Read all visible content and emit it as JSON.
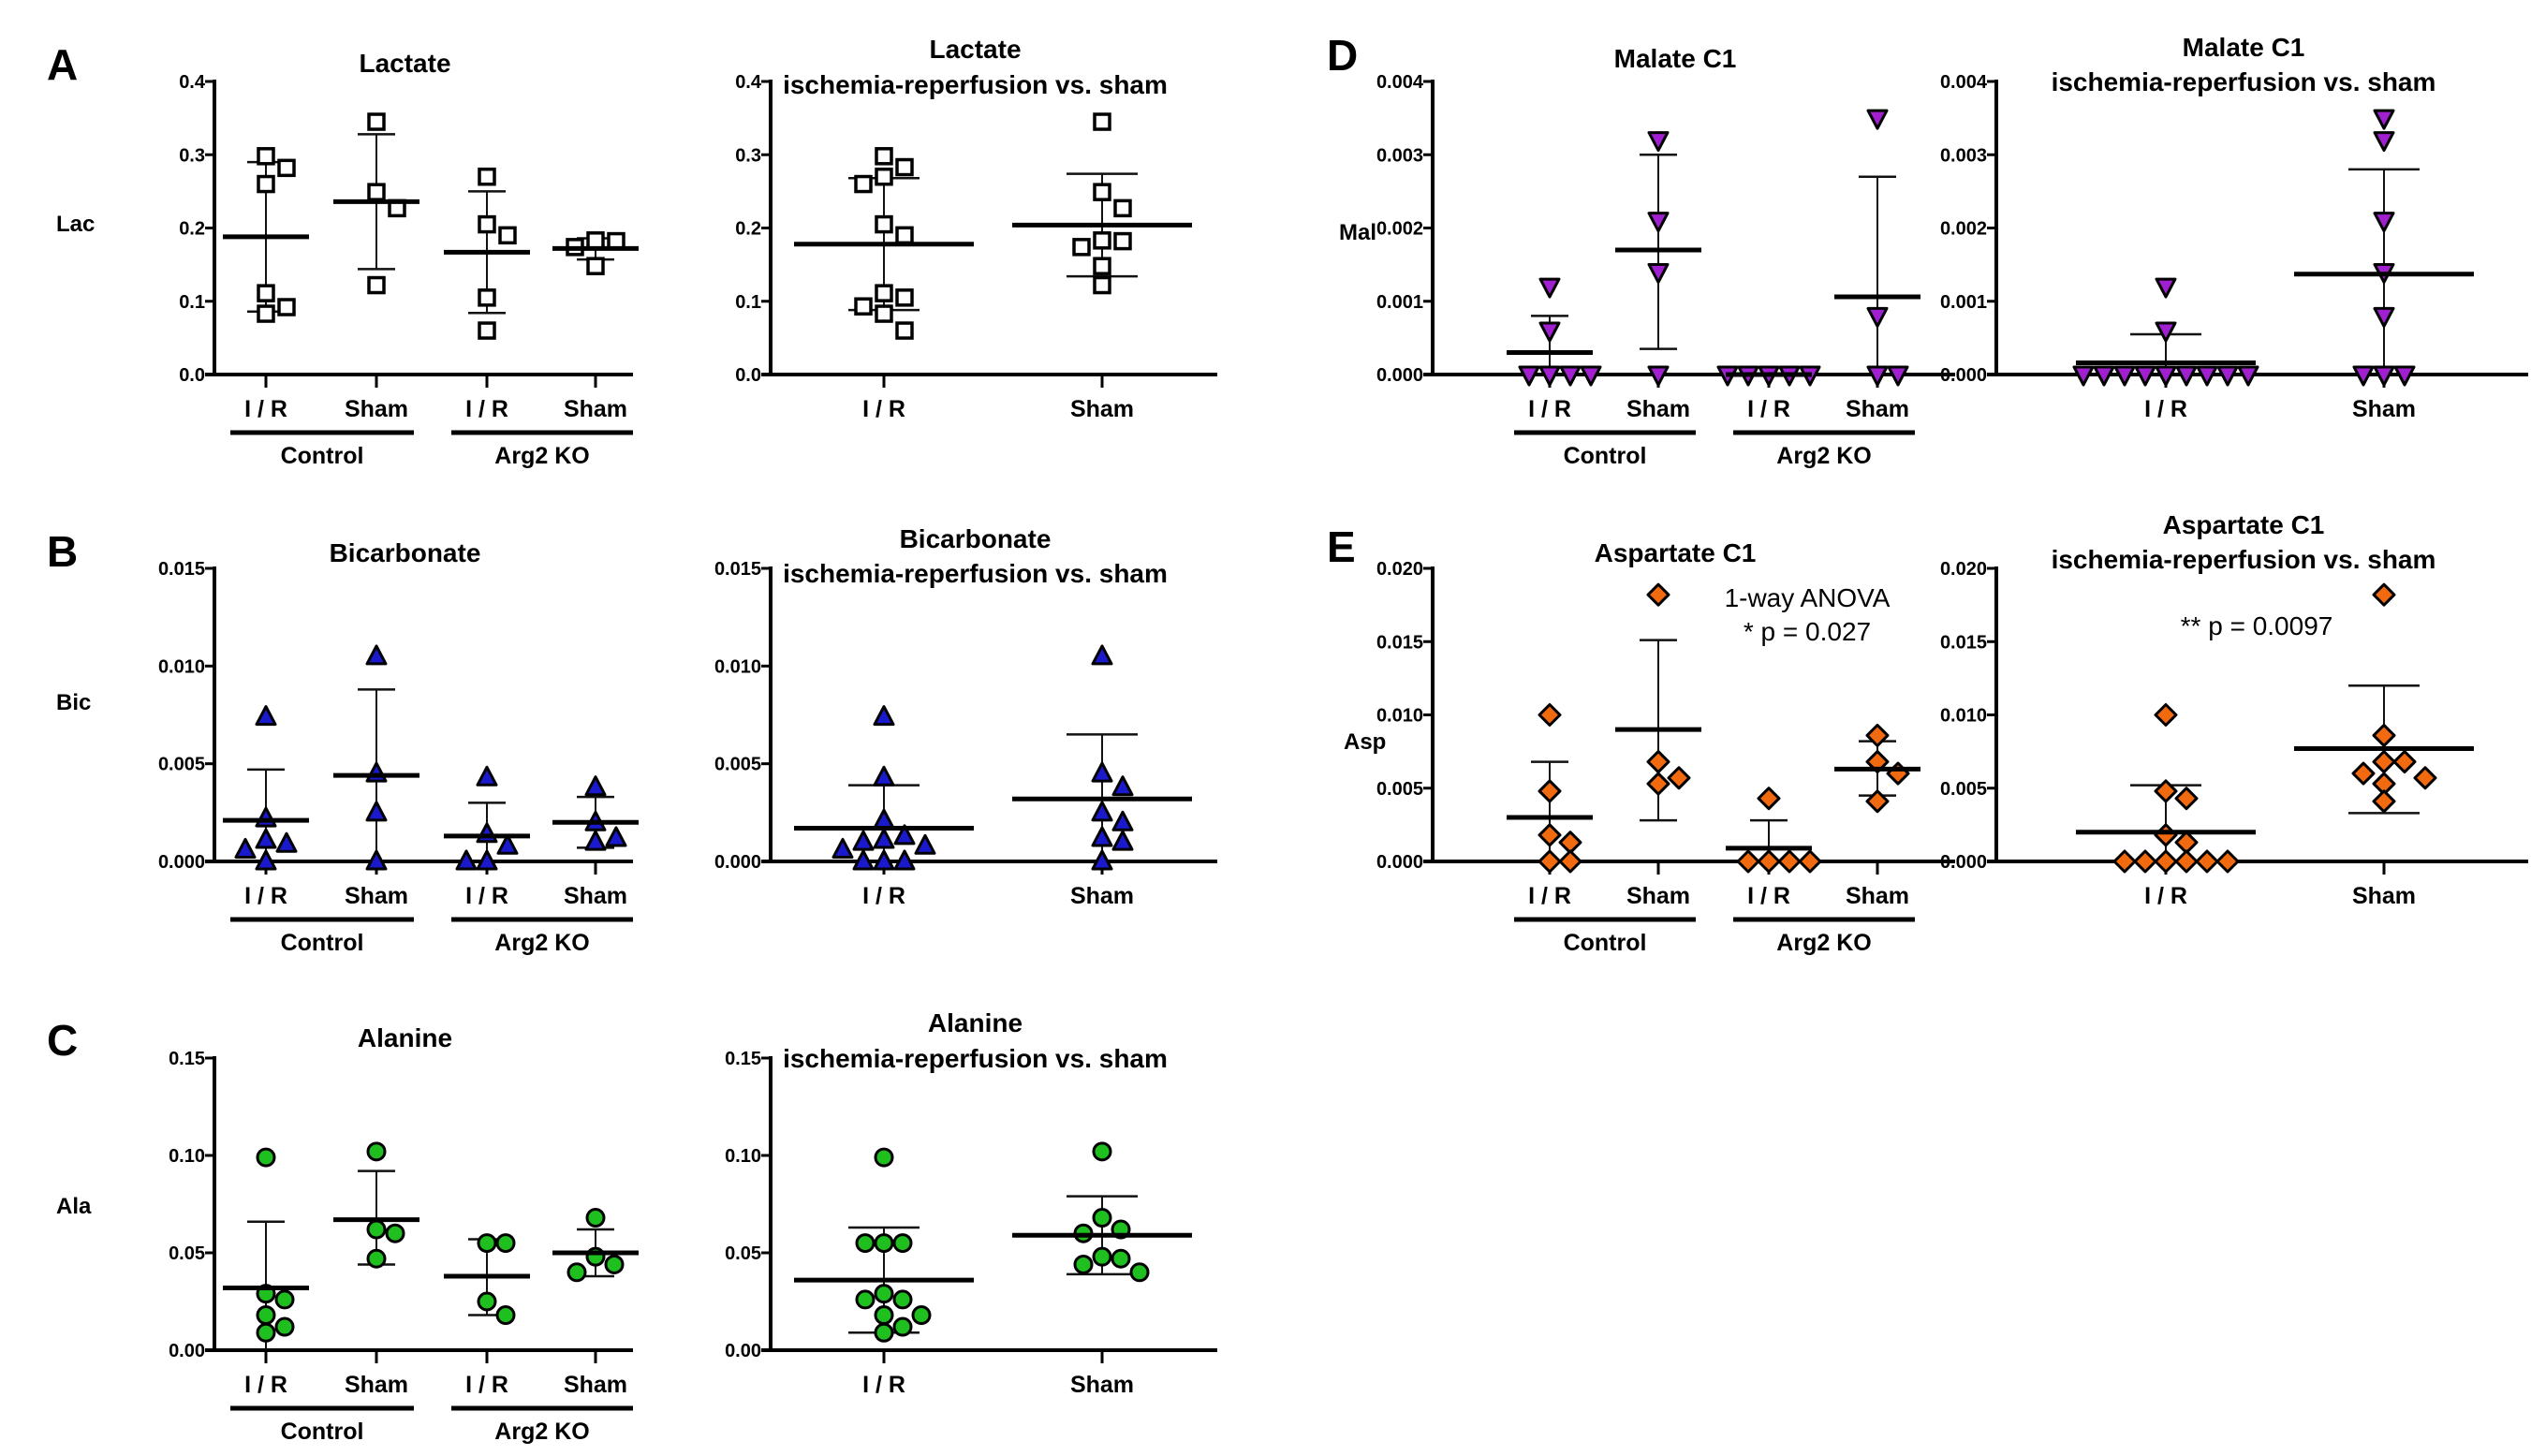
{
  "chart_data": [
    {
      "id": "A1",
      "panel_letter": "A",
      "type": "scatter",
      "title": [
        "Lactate"
      ],
      "ylabel": "Lac",
      "ylim": [
        0,
        0.4
      ],
      "yticks": [
        "0.0",
        "0.1",
        "0.2",
        "0.3",
        "0.4"
      ],
      "ytick_values": [
        0,
        0.1,
        0.2,
        0.3,
        0.4
      ],
      "marker": "square",
      "color": "#ffffff",
      "categories": [
        "I / R",
        "Sham",
        "I / R",
        "Sham"
      ],
      "groups": [
        {
          "label": "Control",
          "span": [
            0,
            1
          ]
        },
        {
          "label": "Arg2 KO",
          "span": [
            2,
            3
          ]
        }
      ],
      "series": [
        {
          "name": "Control I / R",
          "values": [
            0.298,
            0.282,
            0.26,
            0.111,
            0.092,
            0.083
          ],
          "mean": 0.188,
          "sd_upper": 0.29,
          "sd_lower": 0.086
        },
        {
          "name": "Control Sham",
          "values": [
            0.345,
            0.249,
            0.227,
            0.122
          ],
          "mean": 0.236,
          "sd_upper": 0.328,
          "sd_lower": 0.144
        },
        {
          "name": "Arg2 KO I / R",
          "values": [
            0.27,
            0.205,
            0.19,
            0.105,
            0.06
          ],
          "mean": 0.167,
          "sd_upper": 0.25,
          "sd_lower": 0.084
        },
        {
          "name": "Arg2 KO Sham",
          "values": [
            0.182,
            0.183,
            0.174,
            0.148
          ],
          "mean": 0.172,
          "sd_upper": 0.186,
          "sd_lower": 0.157
        }
      ]
    },
    {
      "id": "A2",
      "type": "scatter",
      "title": [
        "Lactate",
        "ischemia-reperfusion vs. sham"
      ],
      "ylabel": "",
      "ylim": [
        0,
        0.4
      ],
      "yticks": [
        "0.0",
        "0.1",
        "0.2",
        "0.3",
        "0.4"
      ],
      "ytick_values": [
        0,
        0.1,
        0.2,
        0.3,
        0.4
      ],
      "marker": "square",
      "color": "#ffffff",
      "categories": [
        "I / R",
        "Sham"
      ],
      "groups": [],
      "series": [
        {
          "name": "I / R",
          "values": [
            0.298,
            0.283,
            0.27,
            0.26,
            0.205,
            0.19,
            0.111,
            0.105,
            0.093,
            0.083,
            0.06
          ],
          "mean": 0.178,
          "sd_upper": 0.268,
          "sd_lower": 0.088
        },
        {
          "name": "Sham",
          "values": [
            0.345,
            0.249,
            0.227,
            0.183,
            0.182,
            0.174,
            0.148,
            0.122
          ],
          "mean": 0.204,
          "sd_upper": 0.274,
          "sd_lower": 0.134
        }
      ]
    },
    {
      "id": "B1",
      "panel_letter": "B",
      "type": "scatter",
      "title": [
        "Bicarbonate"
      ],
      "ylabel": "Bic",
      "ylim": [
        0,
        0.015
      ],
      "yticks": [
        "0.000",
        "0.005",
        "0.010",
        "0.015"
      ],
      "ytick_values": [
        0,
        0.005,
        0.01,
        0.015
      ],
      "marker": "triangle-up",
      "color": "#1a1acc",
      "categories": [
        "I / R",
        "Sham",
        "I / R",
        "Sham"
      ],
      "groups": [
        {
          "label": "Control",
          "span": [
            0,
            1
          ]
        },
        {
          "label": "Arg2 KO",
          "span": [
            2,
            3
          ]
        }
      ],
      "series": [
        {
          "name": "Control I / R",
          "values": [
            0.0074,
            0.0022,
            0.0011,
            0.0009,
            0.0006,
            0.0
          ],
          "mean": 0.0021,
          "sd_upper": 0.0047,
          "sd_lower": 0.0
        },
        {
          "name": "Control Sham",
          "values": [
            0.0105,
            0.0045,
            0.0025,
            0.0
          ],
          "mean": 0.0044,
          "sd_upper": 0.0088,
          "sd_lower": 0.0
        },
        {
          "name": "Arg2 KO I / R",
          "values": [
            0.0043,
            0.0014,
            0.0008,
            0.0,
            0.0
          ],
          "mean": 0.0013,
          "sd_upper": 0.003,
          "sd_lower": 0.0
        },
        {
          "name": "Arg2 KO Sham",
          "values": [
            0.0038,
            0.002,
            0.0012,
            0.001
          ],
          "mean": 0.002,
          "sd_upper": 0.0033,
          "sd_lower": 0.0007
        }
      ]
    },
    {
      "id": "B2",
      "type": "scatter",
      "title": [
        "Bicarbonate",
        "ischemia-reperfusion vs. sham"
      ],
      "ylabel": "",
      "ylim": [
        0,
        0.015
      ],
      "yticks": [
        "0.000",
        "0.005",
        "0.010",
        "0.015"
      ],
      "ytick_values": [
        0,
        0.005,
        0.01,
        0.015
      ],
      "marker": "triangle-up",
      "color": "#1a1acc",
      "categories": [
        "I / R",
        "Sham"
      ],
      "groups": [],
      "series": [
        {
          "name": "I / R",
          "values": [
            0.0074,
            0.0043,
            0.0021,
            0.0013,
            0.0011,
            0.001,
            0.0008,
            0.0006,
            0.0,
            0.0,
            0.0
          ],
          "mean": 0.0017,
          "sd_upper": 0.0039,
          "sd_lower": 0.0
        },
        {
          "name": "Sham",
          "values": [
            0.0105,
            0.0045,
            0.0038,
            0.0025,
            0.002,
            0.0012,
            0.001,
            0.0
          ],
          "mean": 0.0032,
          "sd_upper": 0.0065,
          "sd_lower": 0.0
        }
      ]
    },
    {
      "id": "C1",
      "panel_letter": "C",
      "type": "scatter",
      "title": [
        "Alanine"
      ],
      "ylabel": "Ala",
      "ylim": [
        0,
        0.15
      ],
      "yticks": [
        "0.00",
        "0.05",
        "0.10",
        "0.15"
      ],
      "ytick_values": [
        0,
        0.05,
        0.1,
        0.15
      ],
      "marker": "circle",
      "color": "#1fbf1f",
      "categories": [
        "I / R",
        "Sham",
        "I / R",
        "Sham"
      ],
      "groups": [
        {
          "label": "Control",
          "span": [
            0,
            1
          ]
        },
        {
          "label": "Arg2 KO",
          "span": [
            2,
            3
          ]
        }
      ],
      "series": [
        {
          "name": "Control I / R",
          "values": [
            0.099,
            0.029,
            0.026,
            0.018,
            0.012,
            0.009
          ],
          "mean": 0.032,
          "sd_upper": 0.066,
          "sd_lower": 0.0
        },
        {
          "name": "Control Sham",
          "values": [
            0.102,
            0.062,
            0.06,
            0.047
          ],
          "mean": 0.067,
          "sd_upper": 0.092,
          "sd_lower": 0.044
        },
        {
          "name": "Arg2 KO I / R",
          "values": [
            0.055,
            0.055,
            0.025,
            0.018
          ],
          "mean": 0.038,
          "sd_upper": 0.057,
          "sd_lower": 0.018
        },
        {
          "name": "Arg2 KO Sham",
          "values": [
            0.068,
            0.048,
            0.044,
            0.04
          ],
          "mean": 0.05,
          "sd_upper": 0.062,
          "sd_lower": 0.038
        }
      ]
    },
    {
      "id": "C2",
      "type": "scatter",
      "title": [
        "Alanine",
        "ischemia-reperfusion vs. sham"
      ],
      "ylabel": "",
      "ylim": [
        0,
        0.15
      ],
      "yticks": [
        "0.00",
        "0.05",
        "0.10",
        "0.15"
      ],
      "ytick_values": [
        0,
        0.05,
        0.1,
        0.15
      ],
      "marker": "circle",
      "color": "#1fbf1f",
      "categories": [
        "I / R",
        "Sham"
      ],
      "groups": [],
      "series": [
        {
          "name": "I / R",
          "values": [
            0.099,
            0.055,
            0.055,
            0.055,
            0.029,
            0.026,
            0.026,
            0.018,
            0.018,
            0.012,
            0.009
          ],
          "mean": 0.036,
          "sd_upper": 0.063,
          "sd_lower": 0.009
        },
        {
          "name": "Sham",
          "values": [
            0.102,
            0.068,
            0.062,
            0.06,
            0.048,
            0.047,
            0.044,
            0.04
          ],
          "mean": 0.059,
          "sd_upper": 0.079,
          "sd_lower": 0.039
        }
      ]
    },
    {
      "id": "D1",
      "panel_letter": "D",
      "type": "scatter",
      "title": [
        "Malate C1"
      ],
      "ylabel": "Mal",
      "ylim": [
        0,
        0.004
      ],
      "yticks": [
        "0.000",
        "0.001",
        "0.002",
        "0.003",
        "0.004"
      ],
      "ytick_values": [
        0,
        0.001,
        0.002,
        0.003,
        0.004
      ],
      "marker": "triangle-down",
      "color": "#a020d0",
      "categories": [
        "I / R",
        "Sham",
        "I / R",
        "Sham"
      ],
      "groups": [
        {
          "label": "Control",
          "span": [
            0,
            1
          ]
        },
        {
          "label": "Arg2 KO",
          "span": [
            2,
            3
          ]
        }
      ],
      "series": [
        {
          "name": "Control I / R",
          "values": [
            0.0012,
            0.0006,
            0.0,
            0.0,
            0.0,
            0.0
          ],
          "mean": 0.0003,
          "sd_upper": 0.0008,
          "sd_lower": 0.0
        },
        {
          "name": "Control Sham",
          "values": [
            0.0032,
            0.0021,
            0.0014,
            0.0
          ],
          "mean": 0.0017,
          "sd_upper": 0.003,
          "sd_lower": 0.00035
        },
        {
          "name": "Arg2 KO I / R",
          "values": [
            0.0,
            0.0,
            0.0,
            0.0,
            0.0
          ],
          "mean": 0.0,
          "sd_upper": 0.0,
          "sd_lower": 0.0
        },
        {
          "name": "Arg2 KO Sham",
          "values": [
            0.0035,
            0.0008,
            0.0,
            0.0
          ],
          "mean": 0.00106,
          "sd_upper": 0.0027,
          "sd_lower": 0.0
        }
      ]
    },
    {
      "id": "D2",
      "type": "scatter",
      "title": [
        "Malate C1",
        "ischemia-reperfusion vs. sham"
      ],
      "ylabel": "",
      "ylim": [
        0,
        0.004
      ],
      "yticks": [
        "0.000",
        "0.001",
        "0.002",
        "0.003",
        "0.004"
      ],
      "ytick_values": [
        0,
        0.001,
        0.002,
        0.003,
        0.004
      ],
      "marker": "triangle-down",
      "color": "#a020d0",
      "categories": [
        "I / R",
        "Sham"
      ],
      "groups": [],
      "series": [
        {
          "name": "I / R",
          "values": [
            0.0012,
            0.0006,
            0.0,
            0.0,
            0.0,
            0.0,
            0.0,
            0.0,
            0.0,
            0.0,
            0.0
          ],
          "mean": 0.00016,
          "sd_upper": 0.00055,
          "sd_lower": 0.0
        },
        {
          "name": "Sham",
          "values": [
            0.0035,
            0.0032,
            0.0021,
            0.0014,
            0.0008,
            0.0,
            0.0,
            0.0
          ],
          "mean": 0.00137,
          "sd_upper": 0.0028,
          "sd_lower": 0.0
        },
        {
          "name": "_",
          "values": []
        }
      ]
    },
    {
      "id": "E1",
      "panel_letter": "E",
      "type": "scatter",
      "title": [
        "Aspartate C1"
      ],
      "ylabel": "Asp",
      "ylim": [
        0,
        0.02
      ],
      "yticks": [
        "0.000",
        "0.005",
        "0.010",
        "0.015",
        "0.020"
      ],
      "ytick_values": [
        0,
        0.005,
        0.01,
        0.015,
        0.02
      ],
      "marker": "diamond",
      "color": "#f26a10",
      "categories": [
        "I / R",
        "Sham",
        "I / R",
        "Sham"
      ],
      "groups": [
        {
          "label": "Control",
          "span": [
            0,
            1
          ]
        },
        {
          "label": "Arg2 KO",
          "span": [
            2,
            3
          ]
        }
      ],
      "annotation": [
        "1-way ANOVA",
        "* p = 0.027"
      ],
      "series": [
        {
          "name": "Control I / R",
          "values": [
            0.01,
            0.0048,
            0.0018,
            0.0013,
            0.0,
            0.0
          ],
          "mean": 0.003,
          "sd_upper": 0.0068,
          "sd_lower": 0.0
        },
        {
          "name": "Control Sham",
          "values": [
            0.0182,
            0.0068,
            0.0057,
            0.0053
          ],
          "mean": 0.009,
          "sd_upper": 0.0151,
          "sd_lower": 0.0028
        },
        {
          "name": "Arg2 KO I / R",
          "values": [
            0.0043,
            0.0,
            0.0,
            0.0,
            0.0
          ],
          "mean": 0.0009,
          "sd_upper": 0.0028,
          "sd_lower": 0.0
        },
        {
          "name": "Arg2 KO Sham",
          "values": [
            0.0086,
            0.0068,
            0.006,
            0.0041
          ],
          "mean": 0.0063,
          "sd_upper": 0.0082,
          "sd_lower": 0.0045
        }
      ]
    },
    {
      "id": "E2",
      "type": "scatter",
      "title": [
        "Aspartate C1",
        "ischemia-reperfusion vs. sham"
      ],
      "ylabel": "",
      "ylim": [
        0,
        0.02
      ],
      "yticks": [
        "0.000",
        "0.005",
        "0.010",
        "0.015",
        "0.020"
      ],
      "ytick_values": [
        0,
        0.005,
        0.01,
        0.015,
        0.02
      ],
      "marker": "diamond",
      "color": "#f26a10",
      "categories": [
        "I / R",
        "Sham"
      ],
      "groups": [],
      "annotation": [
        "** p = 0.0097"
      ],
      "series": [
        {
          "name": "I / R",
          "values": [
            0.01,
            0.0048,
            0.0043,
            0.0018,
            0.0013,
            0.0,
            0.0,
            0.0,
            0.0,
            0.0,
            0.0
          ],
          "mean": 0.002,
          "sd_upper": 0.0052,
          "sd_lower": 0.0
        },
        {
          "name": "Sham",
          "values": [
            0.0182,
            0.0086,
            0.0068,
            0.0068,
            0.006,
            0.0057,
            0.0053,
            0.0041
          ],
          "mean": 0.0077,
          "sd_upper": 0.012,
          "sd_lower": 0.0033
        }
      ]
    }
  ]
}
